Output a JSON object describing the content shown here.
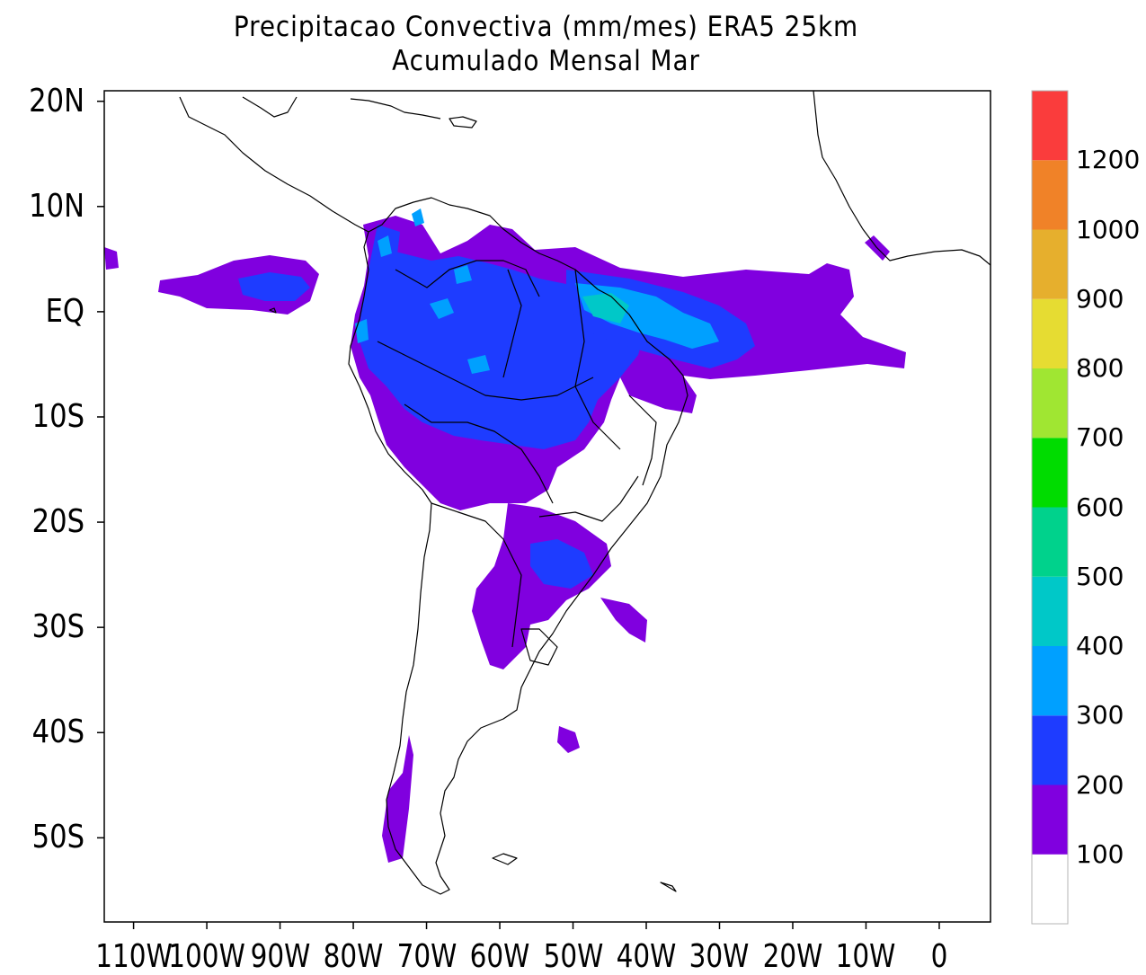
{
  "title": {
    "line1": "Precipitacao Convectiva (mm/mes) ERA5  25km",
    "line2": "Acumulado Mensal Mar"
  },
  "map": {
    "lat_labels": [
      "20N",
      "10N",
      "EQ",
      "10S",
      "20S",
      "30S",
      "40S",
      "50S"
    ],
    "lat_values": [
      20,
      10,
      0,
      -10,
      -20,
      -30,
      -40,
      -50
    ],
    "lon_labels": [
      "110W",
      "100W",
      "90W",
      "80W",
      "70W",
      "60W",
      "50W",
      "40W",
      "30W",
      "20W",
      "10W",
      "0"
    ],
    "lon_values": [
      -110,
      -100,
      -90,
      -80,
      -70,
      -60,
      -50,
      -40,
      -30,
      -20,
      -10,
      0
    ],
    "lon_range": [
      -114,
      7
    ],
    "lat_range": [
      21,
      -58
    ]
  },
  "colorbar": {
    "labels": [
      "100",
      "200",
      "300",
      "400",
      "500",
      "600",
      "700",
      "800",
      "900",
      "1000",
      "1200"
    ],
    "colors": [
      "#ffffff",
      "#8000df",
      "#1e3cff",
      "#00a0ff",
      "#00c8c8",
      "#00d28c",
      "#00dc00",
      "#a0e632",
      "#e6dc32",
      "#e6af2d",
      "#f08228",
      "#fa3c3c"
    ]
  }
}
